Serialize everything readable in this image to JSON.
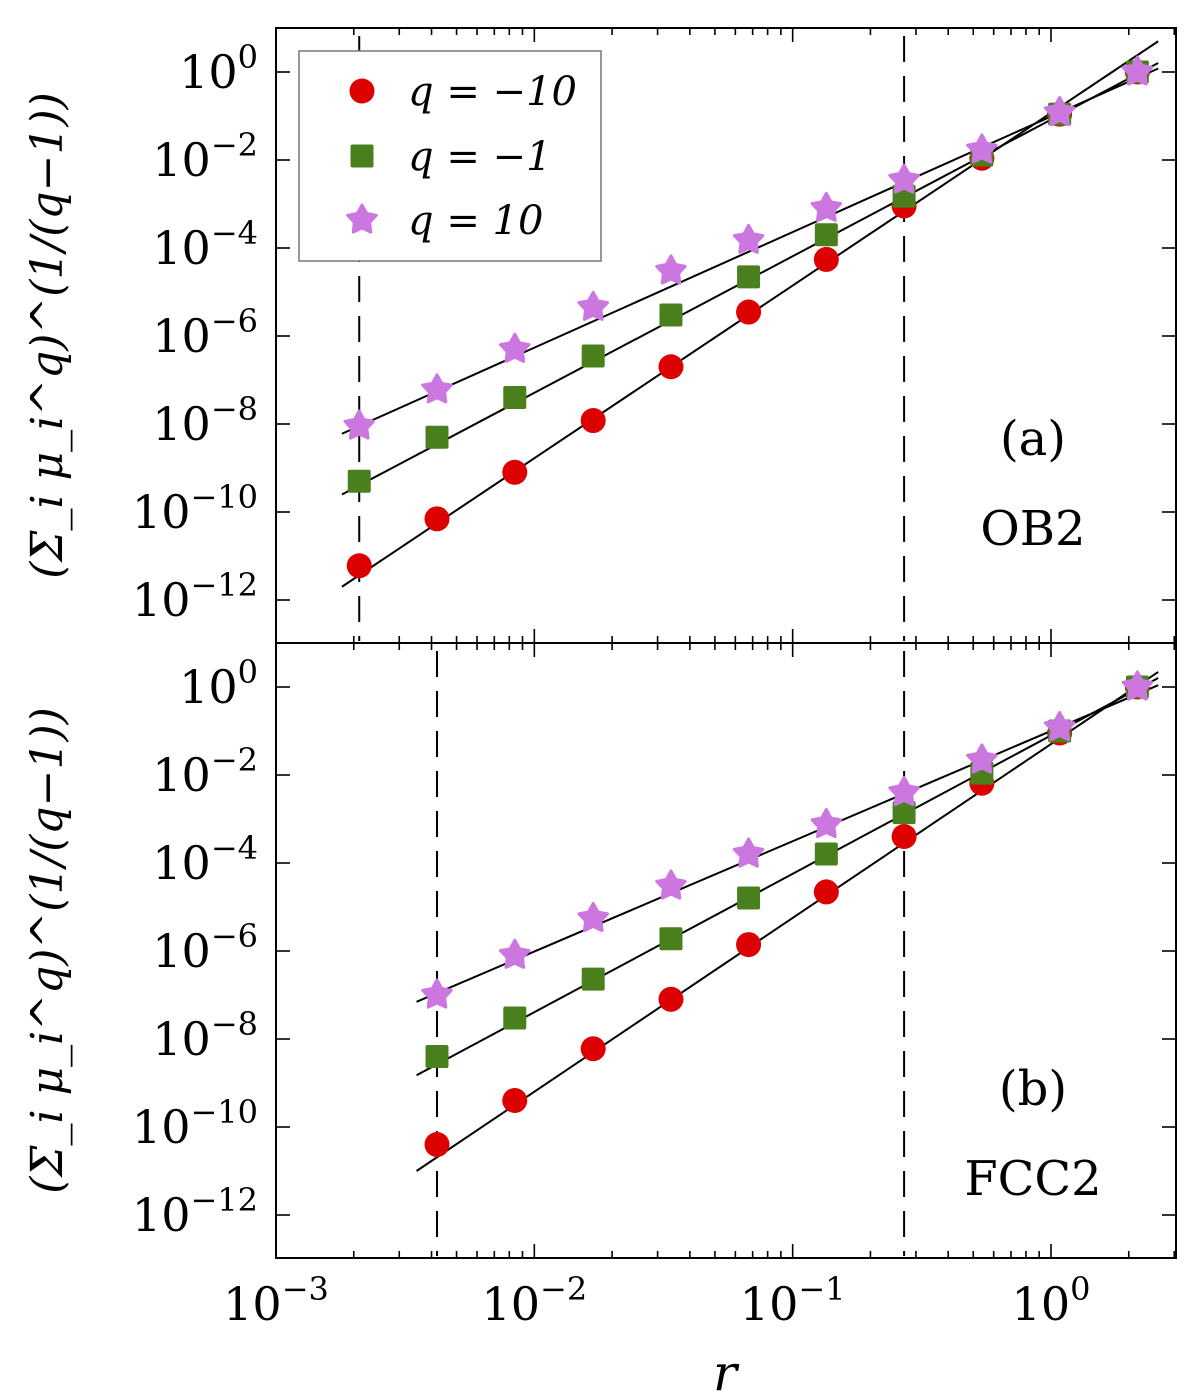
{
  "chart_data": [
    {
      "panel": "(a)",
      "label": "OB2",
      "type": "scatter",
      "scale": "log-log",
      "xlabel": "r",
      "ylabel": "(Σ_i μ_i^q)^(1/(q−1))",
      "xlim": [
        0.001,
        3.5
      ],
      "ylim": [
        1e-14,
        10
      ],
      "vlines": [
        0.0021,
        0.27
      ],
      "legend": "top-left",
      "x": [
        0.0021,
        0.0042,
        0.0084,
        0.0169,
        0.0338,
        0.0675,
        0.135,
        0.27,
        0.54,
        1.08,
        2.16
      ],
      "series": [
        {
          "name": "q = −10",
          "marker": "circle",
          "color": "#dd0000",
          "values": [
            6e-12,
            7e-11,
            8e-10,
            1.2e-08,
            2e-07,
            3.5e-06,
            5.5e-05,
            0.0009,
            0.011,
            0.11,
            1
          ],
          "fit": {
            "x": [
              0.0018,
              2.6
            ],
            "y": [
              2e-12,
              5.0
            ]
          }
        },
        {
          "name": "q = −1",
          "marker": "square",
          "color": "#4a7f1e",
          "values": [
            5e-10,
            5e-09,
            4e-08,
            3.5e-07,
            3e-06,
            2.2e-05,
            0.0002,
            0.0015,
            0.013,
            0.11,
            1
          ],
          "fit": {
            "x": [
              0.0018,
              2.6
            ],
            "y": [
              2.5e-10,
              1.6
            ]
          }
        },
        {
          "name": "q = 10",
          "marker": "star",
          "color": "#cc77e0",
          "values": [
            9e-09,
            6e-08,
            5e-07,
            4.5e-06,
            3e-05,
            0.00015,
            0.0008,
            0.0035,
            0.017,
            0.12,
            1
          ],
          "fit": {
            "x": [
              0.0018,
              2.6
            ],
            "y": [
              6e-09,
              1.2
            ]
          }
        }
      ]
    },
    {
      "panel": "(b)",
      "label": "FCC2",
      "type": "scatter",
      "scale": "log-log",
      "xlabel": "r",
      "ylabel": "(Σ_i μ_i^q)^(1/(q−1))",
      "xlim": [
        0.001,
        3.5
      ],
      "ylim": [
        1e-14,
        10
      ],
      "vlines": [
        0.0042,
        0.27
      ],
      "x": [
        0.0042,
        0.0084,
        0.0169,
        0.0338,
        0.0675,
        0.135,
        0.27,
        0.54,
        1.08,
        2.16
      ],
      "series": [
        {
          "name": "q = −10",
          "marker": "circle",
          "color": "#dd0000",
          "values": [
            4e-11,
            4e-10,
            6e-09,
            8e-08,
            1.4e-06,
            2.2e-05,
            0.0004,
            0.0065,
            0.09,
            1
          ],
          "fit": {
            "x": [
              0.0035,
              2.6
            ],
            "y": [
              1e-11,
              2.2
            ]
          }
        },
        {
          "name": "q = −1",
          "marker": "square",
          "color": "#4a7f1e",
          "values": [
            4e-09,
            3e-08,
            2.3e-07,
            1.9e-06,
            1.6e-05,
            0.00016,
            0.0014,
            0.011,
            0.1,
            1
          ],
          "fit": {
            "x": [
              0.0035,
              2.6
            ],
            "y": [
              1.5e-09,
              1.6
            ]
          }
        },
        {
          "name": "q = 10",
          "marker": "star",
          "color": "#cc77e0",
          "values": [
            1e-07,
            8e-07,
            5.5e-06,
            3e-05,
            0.00016,
            0.00075,
            0.004,
            0.022,
            0.12,
            1
          ],
          "fit": {
            "x": [
              0.0035,
              2.6
            ],
            "y": [
              7e-08,
              1.1
            ]
          }
        }
      ]
    }
  ],
  "axis": {
    "x_ticks": [
      {
        "base": "10",
        "exp": "−3"
      },
      {
        "base": "10",
        "exp": "−2"
      },
      {
        "base": "10",
        "exp": "−1"
      },
      {
        "base": "10",
        "exp": "0"
      }
    ],
    "y_ticks": [
      {
        "base": "10",
        "exp": "0"
      },
      {
        "base": "10",
        "exp": "−2"
      },
      {
        "base": "10",
        "exp": "−4"
      },
      {
        "base": "10",
        "exp": "−6"
      },
      {
        "base": "10",
        "exp": "−8"
      },
      {
        "base": "10",
        "exp": "−10"
      },
      {
        "base": "10",
        "exp": "−12"
      }
    ],
    "x_label": "r"
  },
  "legend": {
    "entries": [
      {
        "q_symbol": "q",
        "eq": "=",
        "val": "−10"
      },
      {
        "q_symbol": "q",
        "eq": "=",
        "val": "−1"
      },
      {
        "q_symbol": "q",
        "eq": "=",
        "val": "10"
      }
    ]
  }
}
